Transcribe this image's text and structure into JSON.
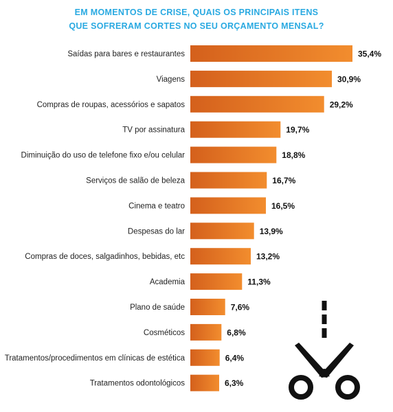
{
  "title_lines": [
    "EM MOMENTOS DE CRISE, QUAIS OS PRINCIPAIS ITENS",
    "QUE SOFRERAM CORTES NO SEU ORÇAMENTO MENSAL?"
  ],
  "colors": {
    "title": "#29a9e1",
    "bar_start": "#d4601c",
    "bar_end": "#f28d2e",
    "icon": "#111111"
  },
  "icon": "scissors-cut-icon",
  "chart_data": {
    "type": "bar",
    "orientation": "horizontal",
    "title": "EM MOMENTOS DE CRISE, QUAIS OS PRINCIPAIS ITENS QUE SOFRERAM CORTES NO SEU ORÇAMENTO MENSAL?",
    "categories": [
      "Saídas para bares e restaurantes",
      "Viagens",
      "Compras de roupas, acessórios e sapatos",
      "TV por assinatura",
      "Diminuição do uso de telefone fixo e/ou celular",
      "Serviços de salão de beleza",
      "Cinema e teatro",
      "Despesas do lar",
      "Compras de doces, salgadinhos, bebidas, etc",
      "Academia",
      "Plano de saúde",
      "Cosméticos",
      "Tratamentos/procedimentos em clínicas de estética",
      "Tratamentos odontológicos"
    ],
    "values": [
      35.4,
      30.9,
      29.2,
      19.7,
      18.8,
      16.7,
      16.5,
      13.9,
      13.2,
      11.3,
      7.6,
      6.8,
      6.4,
      6.3
    ],
    "value_labels": [
      "35,4%",
      "30,9%",
      "29,2%",
      "19,7%",
      "18,8%",
      "16,7%",
      "16,5%",
      "13,9%",
      "13,2%",
      "11,3%",
      "7,6%",
      "6,8%",
      "6,4%",
      "6,3%"
    ],
    "unit": "%",
    "xlim": [
      0,
      35.4
    ],
    "grid": false,
    "legend": "none"
  }
}
